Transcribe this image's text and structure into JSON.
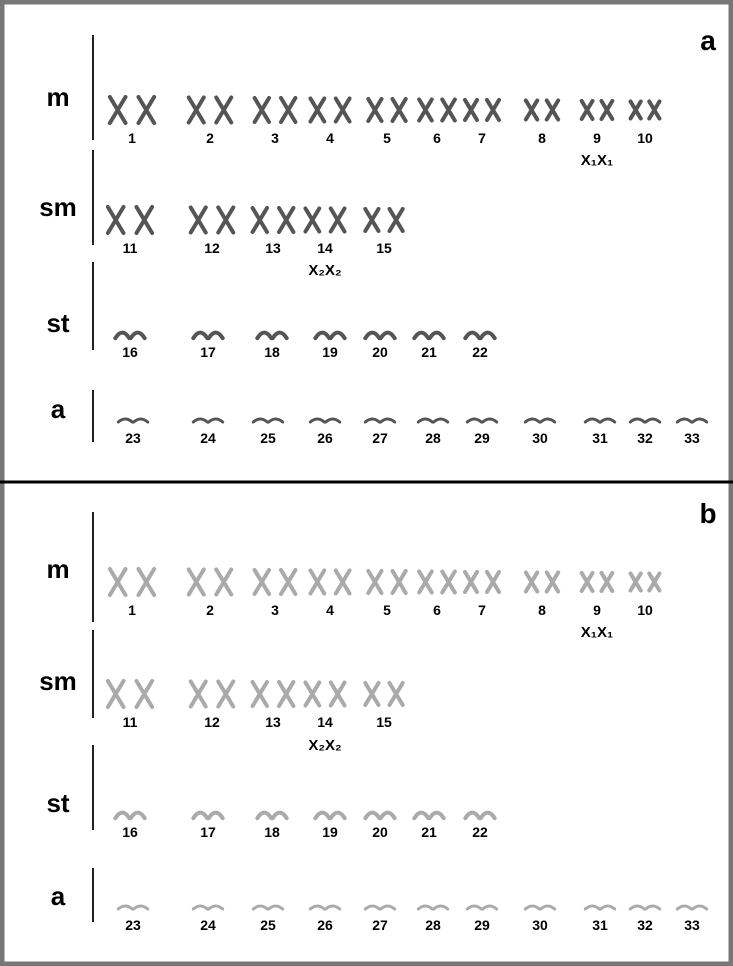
{
  "panels": [
    {
      "label": "a",
      "rows": [
        {
          "label": "m",
          "numbers": [
            "1",
            "2",
            "3",
            "4",
            "5",
            "6",
            "7",
            "8",
            "9",
            "10"
          ]
        },
        {
          "label": "sm",
          "numbers": [
            "11",
            "12",
            "13",
            "14",
            "15"
          ]
        },
        {
          "label": "st",
          "numbers": [
            "16",
            "17",
            "18",
            "19",
            "20",
            "21",
            "22"
          ]
        },
        {
          "label": "a",
          "numbers": [
            "23",
            "24",
            "25",
            "26",
            "27",
            "28",
            "29",
            "30",
            "31",
            "32",
            "33"
          ]
        }
      ],
      "annotations": [
        "X₁X₁",
        "X₂X₂"
      ]
    },
    {
      "label": "b",
      "rows": [
        {
          "label": "m",
          "numbers": [
            "1",
            "2",
            "3",
            "4",
            "5",
            "6",
            "7",
            "8",
            "9",
            "10"
          ]
        },
        {
          "label": "sm",
          "numbers": [
            "11",
            "12",
            "13",
            "14",
            "15"
          ]
        },
        {
          "label": "st",
          "numbers": [
            "16",
            "17",
            "18",
            "19",
            "20",
            "21",
            "22"
          ]
        },
        {
          "label": "a",
          "numbers": [
            "23",
            "24",
            "25",
            "26",
            "27",
            "28",
            "29",
            "30",
            "31",
            "32",
            "33"
          ]
        }
      ],
      "annotations": [
        "X₁X₁",
        "X₂X₂"
      ]
    }
  ]
}
